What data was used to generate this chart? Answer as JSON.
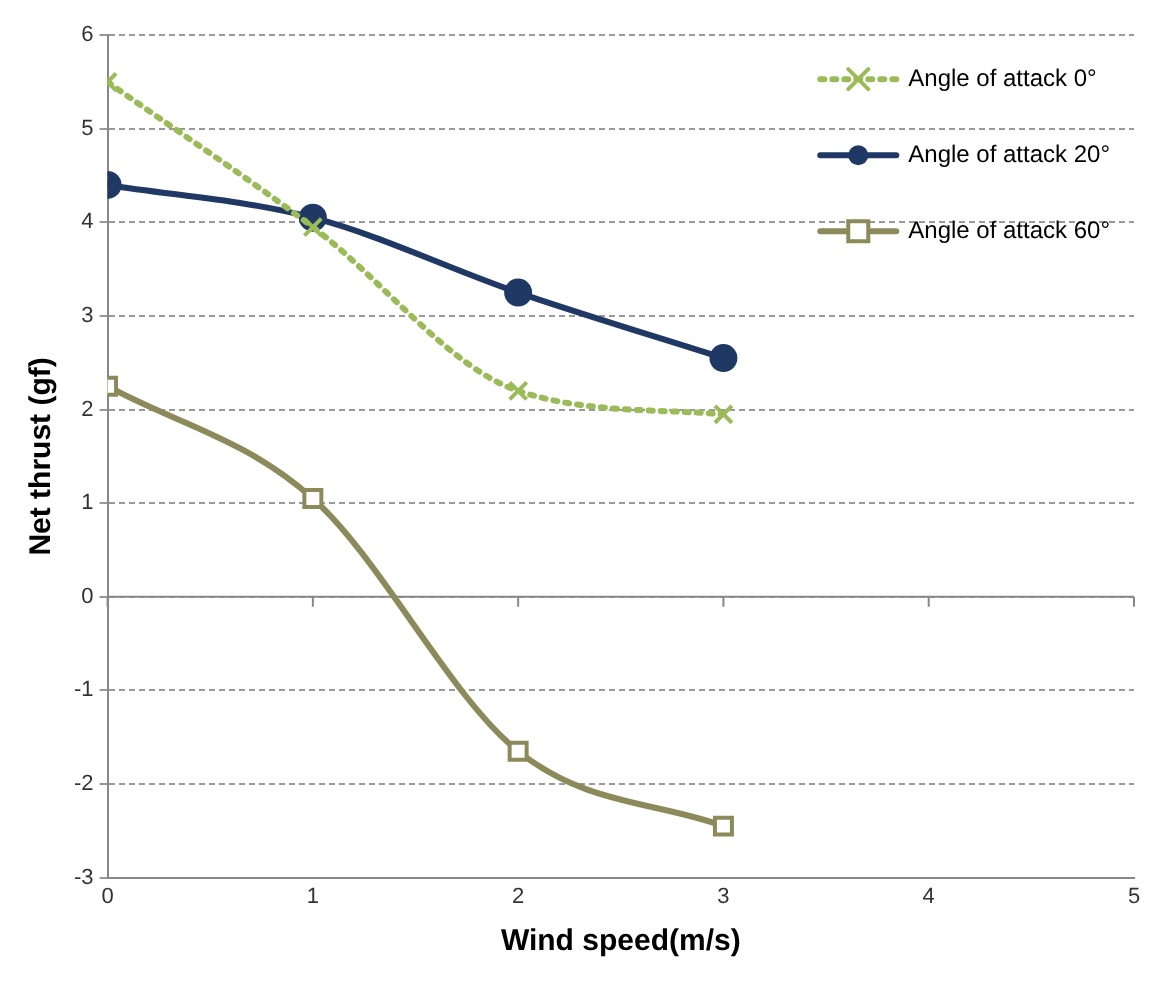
{
  "chart_data": {
    "type": "line",
    "xlabel": "Wind speed(m/s)",
    "ylabel": "Net thrust (gf)",
    "x": [
      0,
      1,
      2,
      3
    ],
    "series": [
      {
        "name": "Angle of attack 0°",
        "color": "#9bbb59",
        "values": [
          5.5,
          3.95,
          2.2,
          1.95
        ],
        "marker": "cross",
        "line_style": "dotted"
      },
      {
        "name": "Angle of attack 20°",
        "color": "#1f3864",
        "values": [
          4.4,
          4.05,
          3.25,
          2.55
        ],
        "marker": "circle",
        "line_style": "solid"
      },
      {
        "name": "Angle of attack 60°",
        "color": "#8c8a5a",
        "values": [
          2.25,
          1.05,
          -1.65,
          -2.45
        ],
        "marker": "square",
        "line_style": "solid"
      }
    ],
    "xlim": [
      0,
      5
    ],
    "xticks": [
      0,
      1,
      2,
      3,
      4,
      5
    ],
    "ylim": [
      -3,
      6
    ],
    "yticks": [
      -3,
      -2,
      -1,
      0,
      1,
      2,
      3,
      4,
      5,
      6
    ],
    "grid": "y",
    "legend": "top right"
  }
}
